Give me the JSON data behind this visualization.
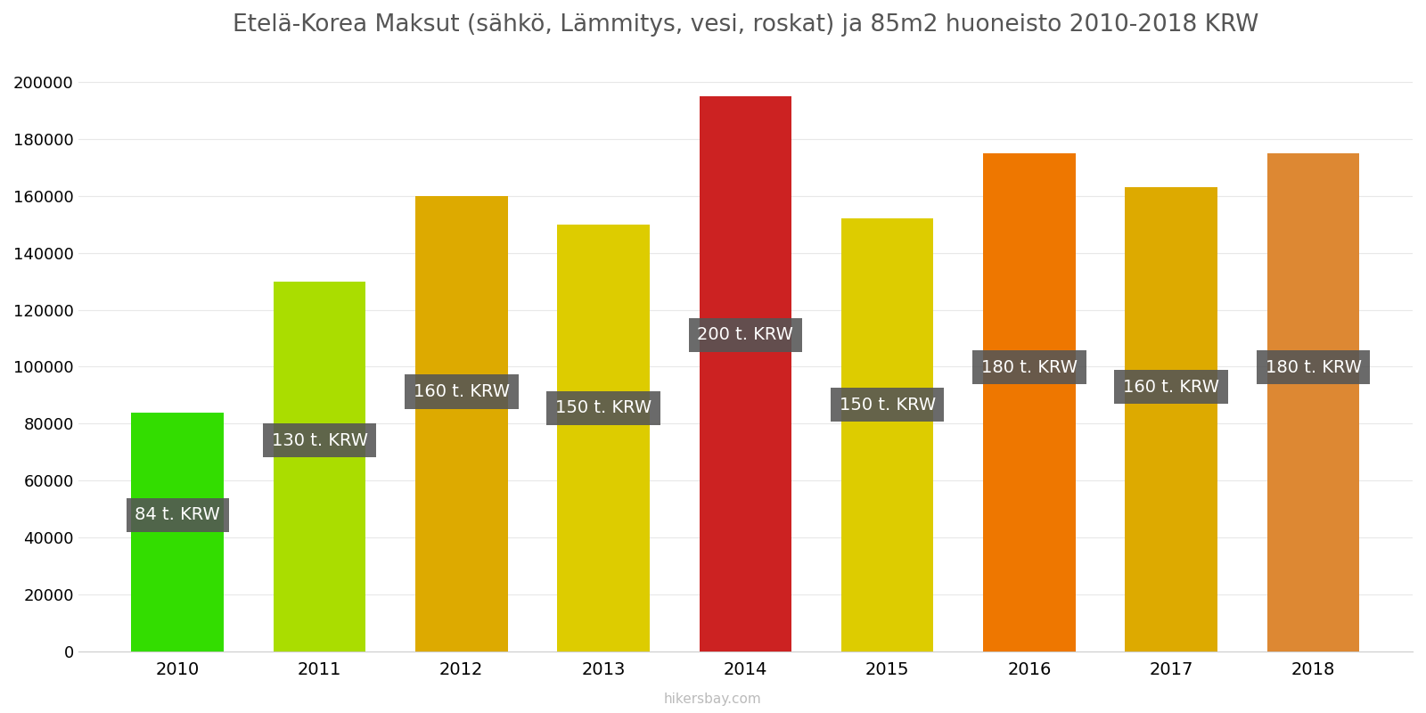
{
  "years": [
    2010,
    2011,
    2012,
    2013,
    2014,
    2015,
    2016,
    2017,
    2018
  ],
  "values": [
    84000,
    130000,
    160000,
    150000,
    195000,
    152000,
    175000,
    163000,
    175000
  ],
  "labels": [
    "84 t. KRW",
    "130 t. KRW",
    "160 t. KRW",
    "150 t. KRW",
    "200 t. KRW",
    "150 t. KRW",
    "180 t. KRW",
    "160 t. KRW",
    "180 t. KRW"
  ],
  "bar_colors": [
    "#33dd00",
    "#aadd00",
    "#ddaa00",
    "#ddcc00",
    "#cc2222",
    "#ddcc00",
    "#ee7700",
    "#ddaa00",
    "#dd8833"
  ],
  "title": "Etelä-Korea Maksut (sähkö, Lämmitys, vesi, roskat) ja 85m2 huoneisto 2010-2018 KRW",
  "ylim": [
    0,
    210000
  ],
  "yticks": [
    0,
    20000,
    40000,
    60000,
    80000,
    100000,
    120000,
    140000,
    160000,
    180000,
    200000
  ],
  "label_box_color": "#555555",
  "label_text_color": "#ffffff",
  "background_color": "#ffffff",
  "watermark": "hikersbay.com",
  "title_fontsize": 19,
  "label_fontsize": 14,
  "bar_width": 0.65
}
